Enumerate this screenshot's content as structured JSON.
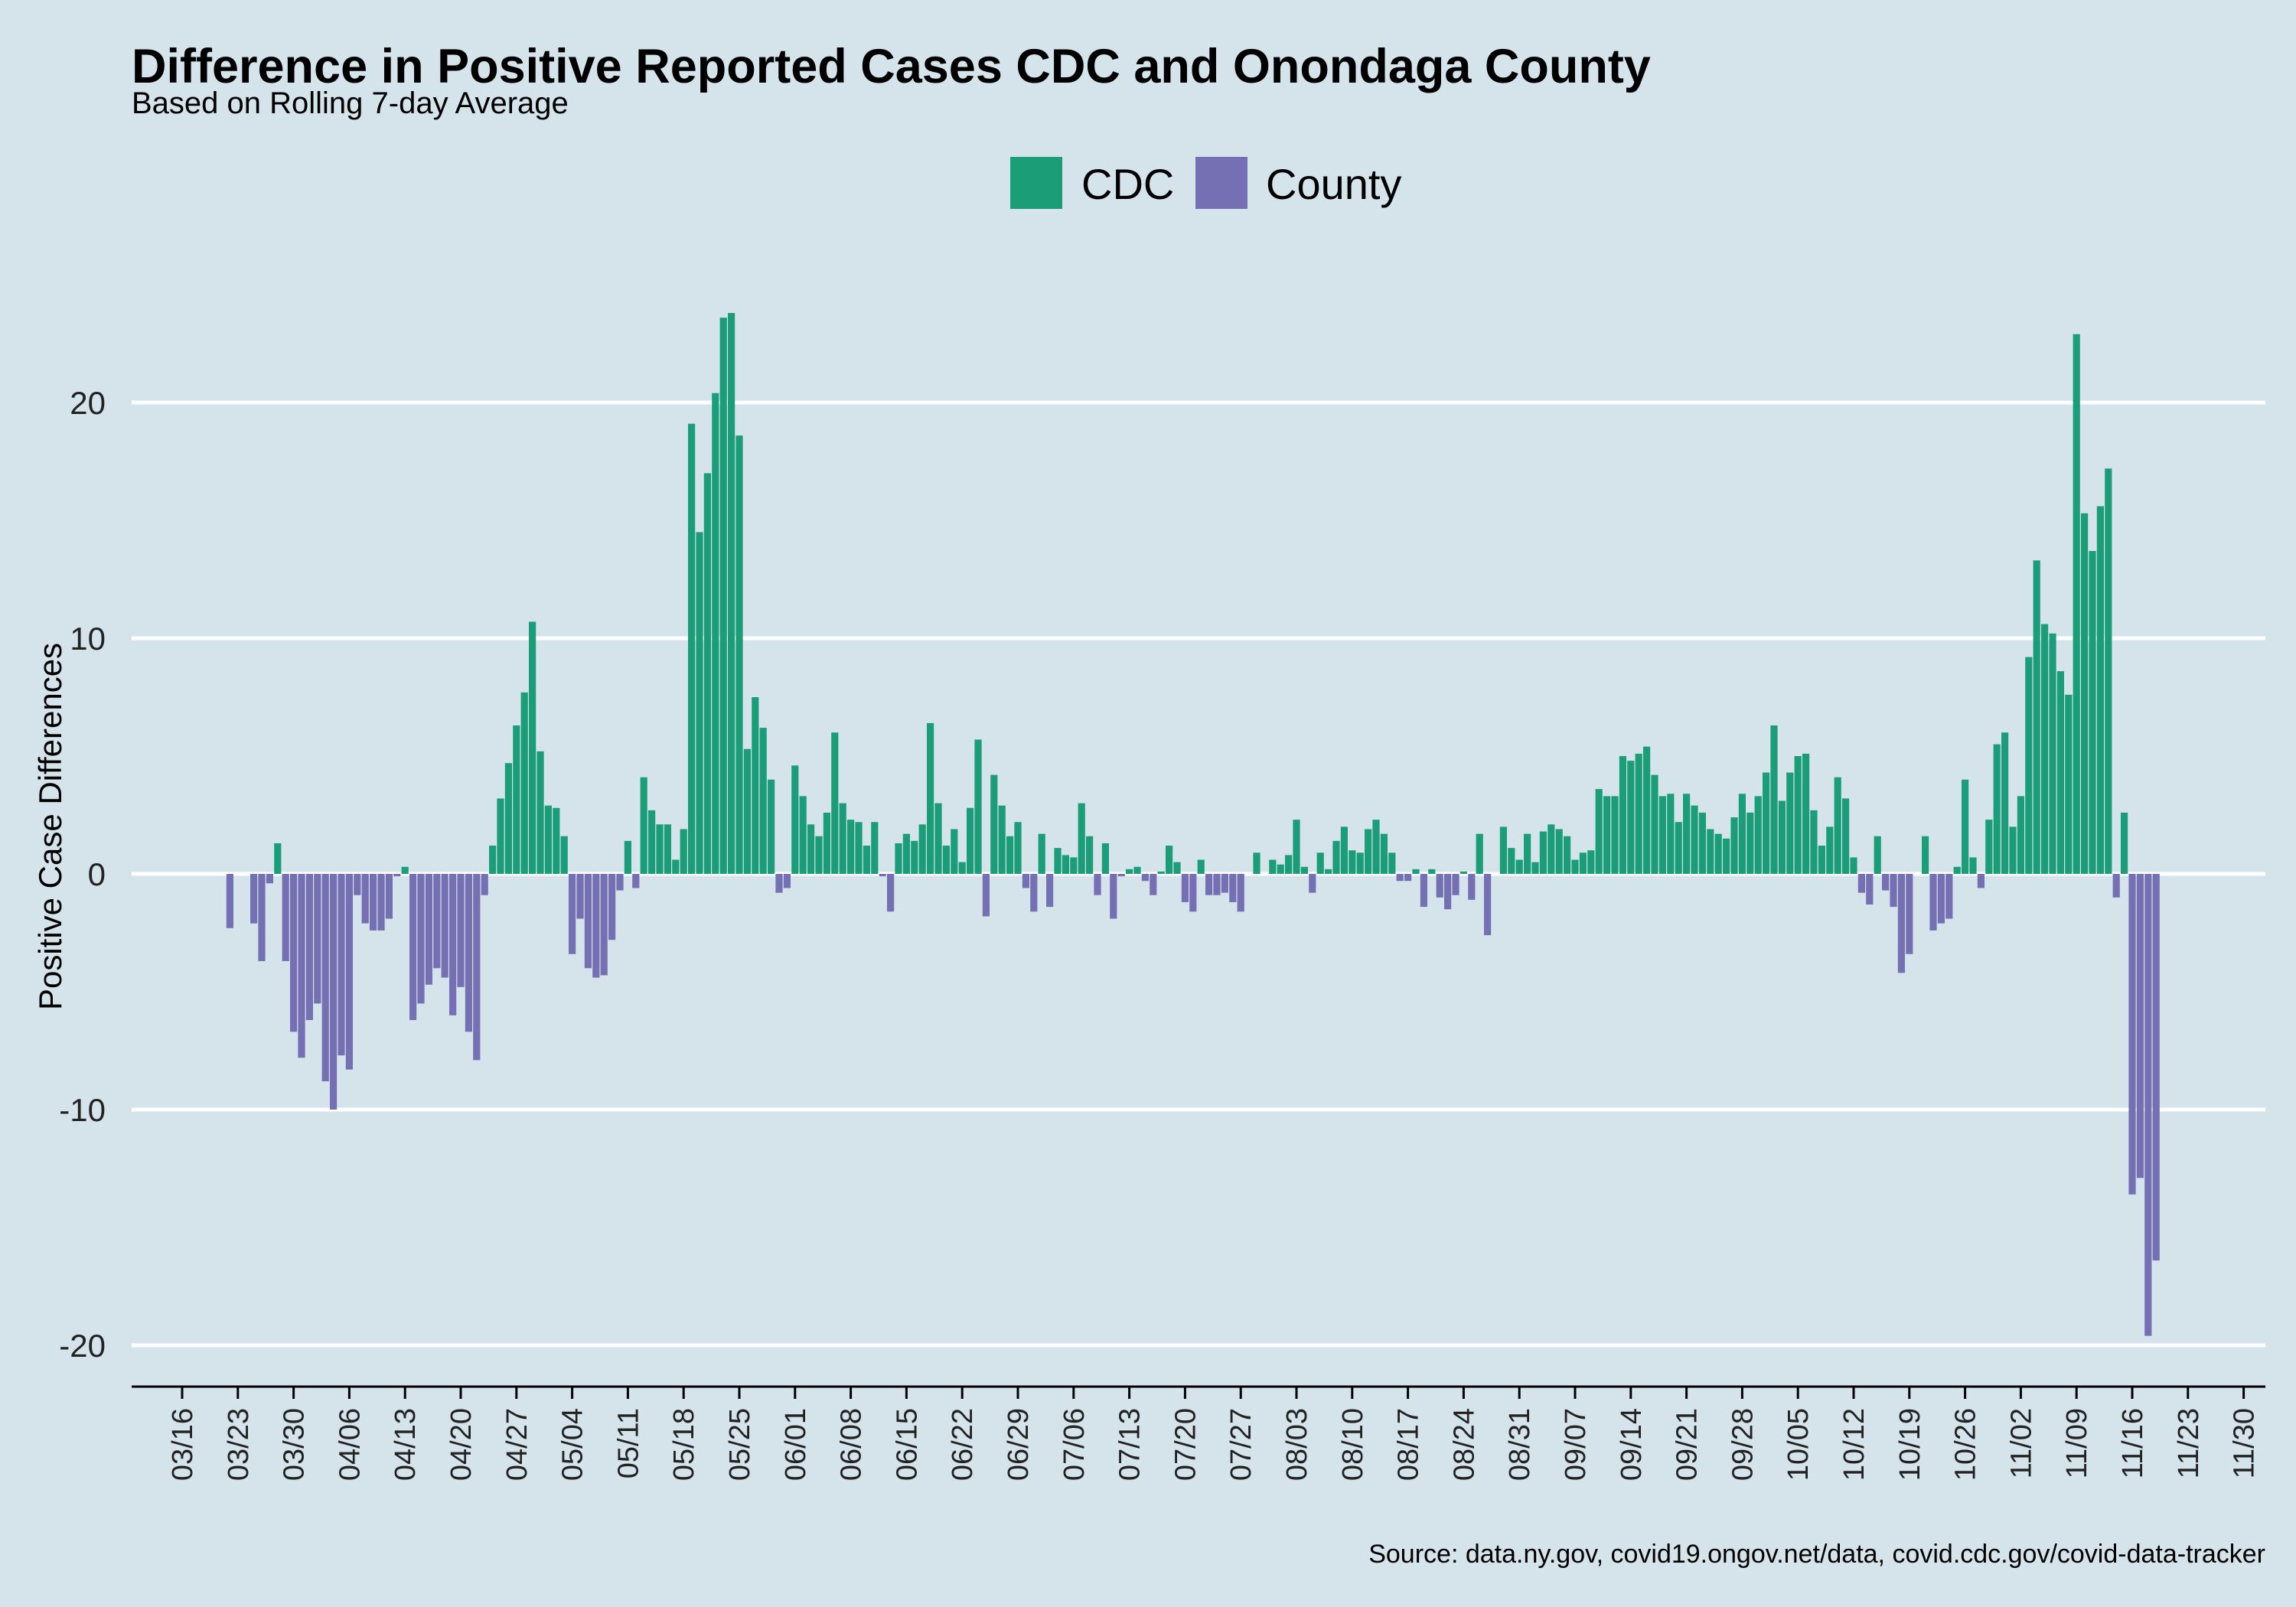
{
  "chart_data": {
    "type": "bar",
    "title": "Difference in Positive Reported Cases CDC and Onondaga County",
    "subtitle": "Based on Rolling 7-day Average",
    "ylabel": "Positive Case Differences",
    "xlabel": "",
    "caption": "Source: data.ny.gov, covid19.ongov.net/data, covid.cdc.gov/covid-data-tracker",
    "ylim": [
      -21.7,
      23.4
    ],
    "yticks": [
      -20,
      -10,
      0,
      10,
      20
    ],
    "grid": true,
    "legend_position": "top",
    "legend": [
      {
        "name": "CDC",
        "color": "#1b9e77"
      },
      {
        "name": "County",
        "color": "#7570b3"
      }
    ],
    "xtick_labels": [
      "03/16",
      "03/23",
      "03/30",
      "04/06",
      "04/13",
      "04/20",
      "04/27",
      "05/04",
      "05/11",
      "05/18",
      "05/25",
      "06/01",
      "06/08",
      "06/15",
      "06/22",
      "06/29",
      "07/06",
      "07/13",
      "07/20",
      "07/27",
      "08/03",
      "08/10",
      "08/17",
      "08/24",
      "08/31",
      "09/07",
      "09/14",
      "09/21",
      "09/28",
      "10/05",
      "10/12",
      "10/19",
      "10/26",
      "11/02",
      "11/09",
      "11/16",
      "11/23",
      "11/30"
    ],
    "x_start": "03/16",
    "values": [
      0,
      0,
      0,
      0,
      0,
      0,
      -2.3,
      0,
      0,
      -2.1,
      -3.7,
      -0.4,
      1.3,
      -3.7,
      -6.7,
      -7.8,
      -6.2,
      -5.5,
      -8.8,
      -10.0,
      -7.7,
      -8.3,
      -0.9,
      -2.1,
      -2.4,
      -2.4,
      -1.9,
      -0.1,
      0.3,
      -6.2,
      -5.5,
      -4.7,
      -4.0,
      -4.4,
      -6.0,
      -4.8,
      -6.7,
      -7.9,
      -0.9,
      1.2,
      3.2,
      4.7,
      6.3,
      7.7,
      10.7,
      5.2,
      2.9,
      2.8,
      1.6,
      -3.4,
      -1.9,
      -4.0,
      -4.4,
      -4.3,
      -2.8,
      -0.7,
      1.4,
      -0.6,
      4.1,
      2.7,
      2.1,
      2.1,
      0.6,
      1.9,
      19.1,
      14.5,
      17.0,
      20.4,
      23.6,
      23.8,
      18.6,
      5.3,
      7.5,
      6.2,
      4.0,
      -0.8,
      -0.6,
      4.6,
      3.3,
      2.1,
      1.6,
      2.6,
      6.0,
      3.0,
      2.3,
      2.2,
      1.2,
      2.2,
      -0.1,
      -1.6,
      1.3,
      1.7,
      1.4,
      2.1,
      6.4,
      3.0,
      1.2,
      1.9,
      0.5,
      2.8,
      5.7,
      -1.8,
      4.2,
      2.9,
      1.6,
      2.2,
      -0.6,
      -1.6,
      1.7,
      -1.4,
      1.1,
      0.8,
      0.7,
      3.0,
      1.6,
      -0.9,
      1.3,
      -1.9,
      -0.1,
      0.2,
      0.3,
      -0.3,
      -0.9,
      0.1,
      1.2,
      0.5,
      -1.2,
      -1.6,
      0.6,
      -0.9,
      -0.9,
      -0.8,
      -1.2,
      -1.6,
      0,
      0.9,
      0,
      0.6,
      0.4,
      0.8,
      2.3,
      0.3,
      -0.8,
      0.9,
      0.2,
      1.4,
      2.0,
      1.0,
      0.9,
      1.9,
      2.3,
      1.7,
      0.9,
      -0.3,
      -0.3,
      0.2,
      -1.4,
      0.2,
      -1.0,
      -1.5,
      -0.9,
      0.1,
      -1.1,
      1.7,
      -2.6,
      0,
      2.0,
      1.1,
      0.6,
      1.7,
      0.5,
      1.8,
      2.1,
      1.9,
      1.6,
      0.6,
      0.9,
      1.0,
      3.6,
      3.3,
      3.3,
      5.0,
      4.8,
      5.1,
      5.4,
      4.2,
      3.3,
      3.4,
      2.2,
      3.4,
      2.9,
      2.6,
      1.9,
      1.7,
      1.5,
      2.4,
      3.4,
      2.6,
      3.3,
      4.3,
      6.3,
      3.1,
      4.3,
      5.0,
      5.1,
      2.7,
      1.2,
      2.0,
      4.1,
      3.2,
      0.7,
      -0.8,
      -1.3,
      1.6,
      -0.7,
      -1.4,
      -4.2,
      -3.4,
      0,
      1.6,
      -2.4,
      -2.1,
      -1.9,
      0.3,
      4.0,
      0.7,
      -0.6,
      2.3,
      5.5,
      6.0,
      2.0,
      3.3,
      9.2,
      13.3,
      10.6,
      10.2,
      8.6,
      7.6,
      22.9,
      15.3,
      13.7,
      15.6,
      17.2,
      -1.0,
      2.6,
      -13.6,
      -12.9,
      -19.6,
      -16.4
    ]
  }
}
